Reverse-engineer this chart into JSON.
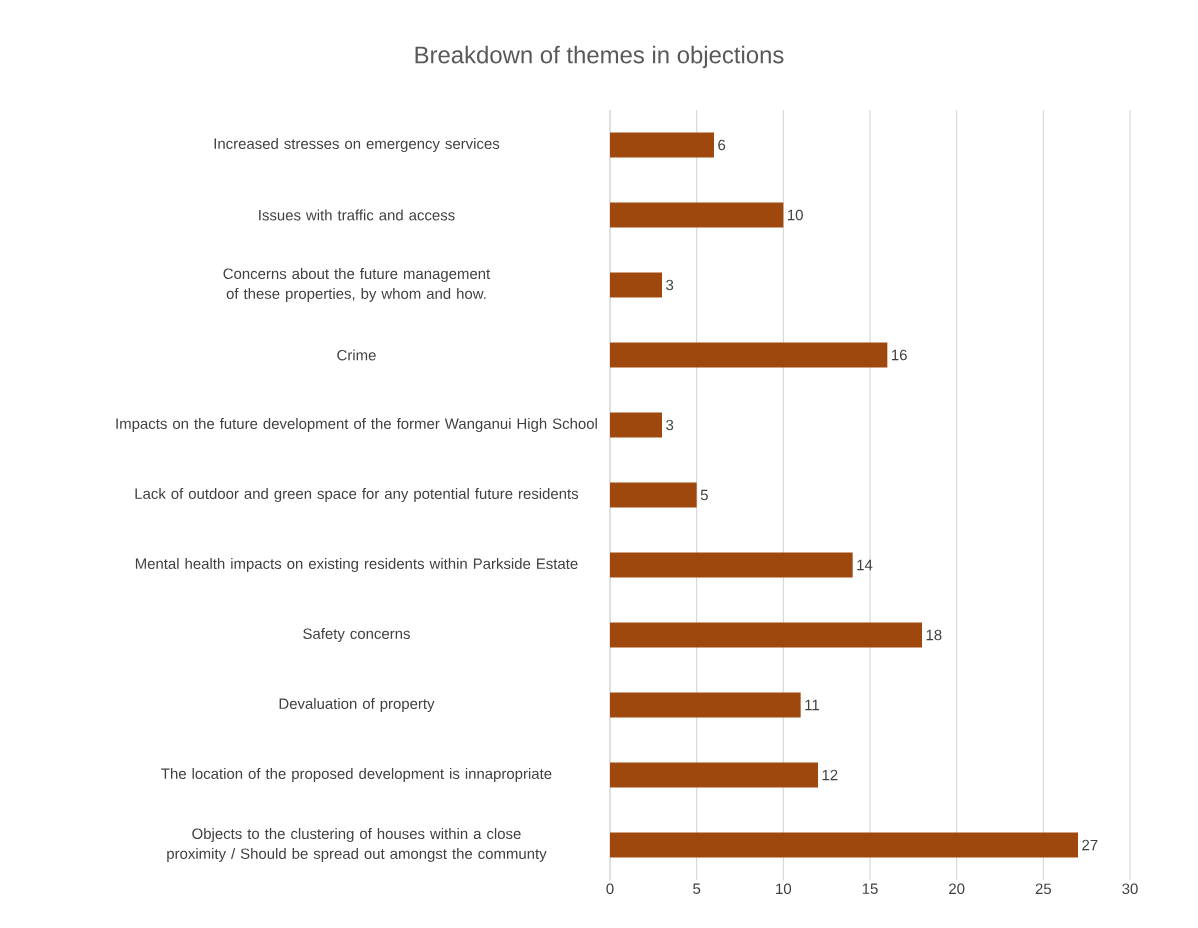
{
  "chart_data": {
    "type": "bar",
    "orientation": "horizontal",
    "title": "Breakdown of themes in objections",
    "categories": [
      "Increased stresses on emergency services",
      "Issues with traffic and access",
      "Concerns about the future management of these properties, by whom and how.",
      "Crime",
      "Impacts on the future development of the former Wanganui High School",
      "Lack of outdoor and green space for any potential future residents",
      "Mental health impacts on existing residents within Parkside Estate",
      "Safety concerns",
      "Devaluation of property",
      "The location of the proposed development is innapropriate",
      "Objects to the clustering of houses within a close proximity / Should be spread out amongst the communty"
    ],
    "values": [
      6,
      10,
      3,
      16,
      3,
      5,
      14,
      18,
      11,
      12,
      27
    ],
    "color": "#9e480e",
    "xlim": [
      0,
      30
    ],
    "xticks": [
      0,
      5,
      10,
      15,
      20,
      25,
      30
    ],
    "grid": "x",
    "data_labels": true
  }
}
